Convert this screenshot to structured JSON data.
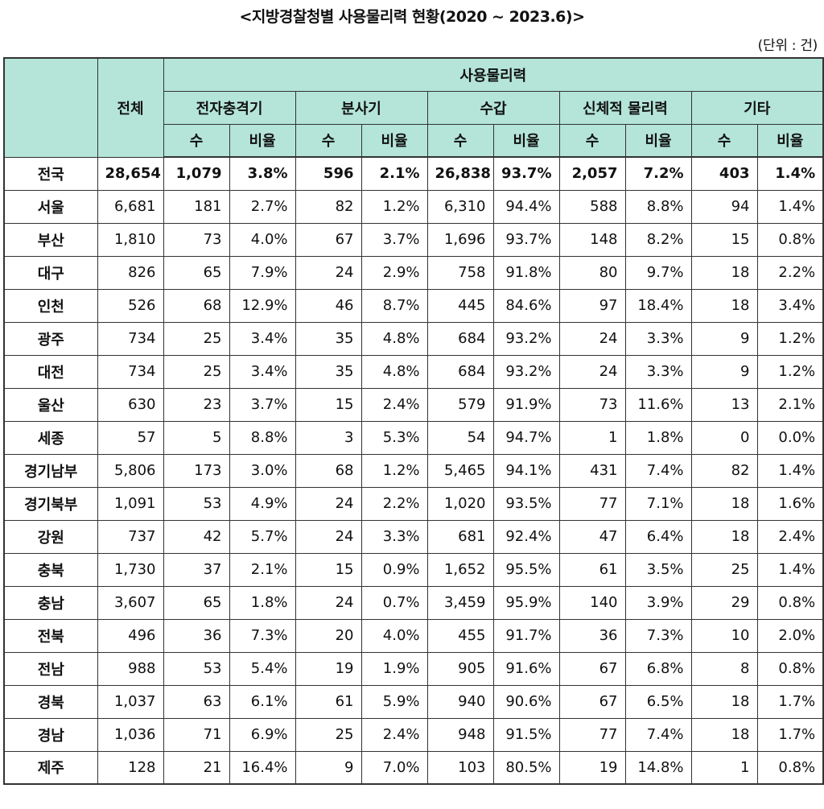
{
  "title": "<지방경찰청별 사용물리력 현황(2020 ~ 2023.6)>",
  "unit": "(단위 : 건)",
  "header": {
    "region": "",
    "total": "전체",
    "group": "사용물리력",
    "categories": [
      "전자충격기",
      "분사기",
      "수갑",
      "신체적 물리력",
      "기타"
    ],
    "sub": [
      "수",
      "비율"
    ]
  },
  "rows": [
    {
      "region": "전국",
      "total": "28,654",
      "v": [
        "1,079",
        "3.8%",
        "596",
        "2.1%",
        "26,838",
        "93.7%",
        "2,057",
        "7.2%",
        "403",
        "1.4%"
      ]
    },
    {
      "region": "서울",
      "total": "6,681",
      "v": [
        "181",
        "2.7%",
        "82",
        "1.2%",
        "6,310",
        "94.4%",
        "588",
        "8.8%",
        "94",
        "1.4%"
      ]
    },
    {
      "region": "부산",
      "total": "1,810",
      "v": [
        "73",
        "4.0%",
        "67",
        "3.7%",
        "1,696",
        "93.7%",
        "148",
        "8.2%",
        "15",
        "0.8%"
      ]
    },
    {
      "region": "대구",
      "total": "826",
      "v": [
        "65",
        "7.9%",
        "24",
        "2.9%",
        "758",
        "91.8%",
        "80",
        "9.7%",
        "18",
        "2.2%"
      ]
    },
    {
      "region": "인천",
      "total": "526",
      "v": [
        "68",
        "12.9%",
        "46",
        "8.7%",
        "445",
        "84.6%",
        "97",
        "18.4%",
        "18",
        "3.4%"
      ]
    },
    {
      "region": "광주",
      "total": "734",
      "v": [
        "25",
        "3.4%",
        "35",
        "4.8%",
        "684",
        "93.2%",
        "24",
        "3.3%",
        "9",
        "1.2%"
      ]
    },
    {
      "region": "대전",
      "total": "734",
      "v": [
        "25",
        "3.4%",
        "35",
        "4.8%",
        "684",
        "93.2%",
        "24",
        "3.3%",
        "9",
        "1.2%"
      ]
    },
    {
      "region": "울산",
      "total": "630",
      "v": [
        "23",
        "3.7%",
        "15",
        "2.4%",
        "579",
        "91.9%",
        "73",
        "11.6%",
        "13",
        "2.1%"
      ]
    },
    {
      "region": "세종",
      "total": "57",
      "v": [
        "5",
        "8.8%",
        "3",
        "5.3%",
        "54",
        "94.7%",
        "1",
        "1.8%",
        "0",
        "0.0%"
      ]
    },
    {
      "region": "경기남부",
      "total": "5,806",
      "v": [
        "173",
        "3.0%",
        "68",
        "1.2%",
        "5,465",
        "94.1%",
        "431",
        "7.4%",
        "82",
        "1.4%"
      ]
    },
    {
      "region": "경기북부",
      "total": "1,091",
      "v": [
        "53",
        "4.9%",
        "24",
        "2.2%",
        "1,020",
        "93.5%",
        "77",
        "7.1%",
        "18",
        "1.6%"
      ]
    },
    {
      "region": "강원",
      "total": "737",
      "v": [
        "42",
        "5.7%",
        "24",
        "3.3%",
        "681",
        "92.4%",
        "47",
        "6.4%",
        "18",
        "2.4%"
      ]
    },
    {
      "region": "충북",
      "total": "1,730",
      "v": [
        "37",
        "2.1%",
        "15",
        "0.9%",
        "1,652",
        "95.5%",
        "61",
        "3.5%",
        "25",
        "1.4%"
      ]
    },
    {
      "region": "충남",
      "total": "3,607",
      "v": [
        "65",
        "1.8%",
        "24",
        "0.7%",
        "3,459",
        "95.9%",
        "140",
        "3.9%",
        "29",
        "0.8%"
      ]
    },
    {
      "region": "전북",
      "total": "496",
      "v": [
        "36",
        "7.3%",
        "20",
        "4.0%",
        "455",
        "91.7%",
        "36",
        "7.3%",
        "10",
        "2.0%"
      ]
    },
    {
      "region": "전남",
      "total": "988",
      "v": [
        "53",
        "5.4%",
        "19",
        "1.9%",
        "905",
        "91.6%",
        "67",
        "6.8%",
        "8",
        "0.8%"
      ]
    },
    {
      "region": "경북",
      "total": "1,037",
      "v": [
        "63",
        "6.1%",
        "61",
        "5.9%",
        "940",
        "90.6%",
        "67",
        "6.5%",
        "18",
        "1.7%"
      ]
    },
    {
      "region": "경남",
      "total": "1,036",
      "v": [
        "71",
        "6.9%",
        "25",
        "2.4%",
        "948",
        "91.5%",
        "77",
        "7.4%",
        "18",
        "1.7%"
      ]
    },
    {
      "region": "제주",
      "total": "128",
      "v": [
        "21",
        "16.4%",
        "9",
        "7.0%",
        "103",
        "80.5%",
        "19",
        "14.8%",
        "1",
        "0.8%"
      ]
    }
  ],
  "colors": {
    "header_bg": "#b4e5d8",
    "border": "#333333"
  }
}
